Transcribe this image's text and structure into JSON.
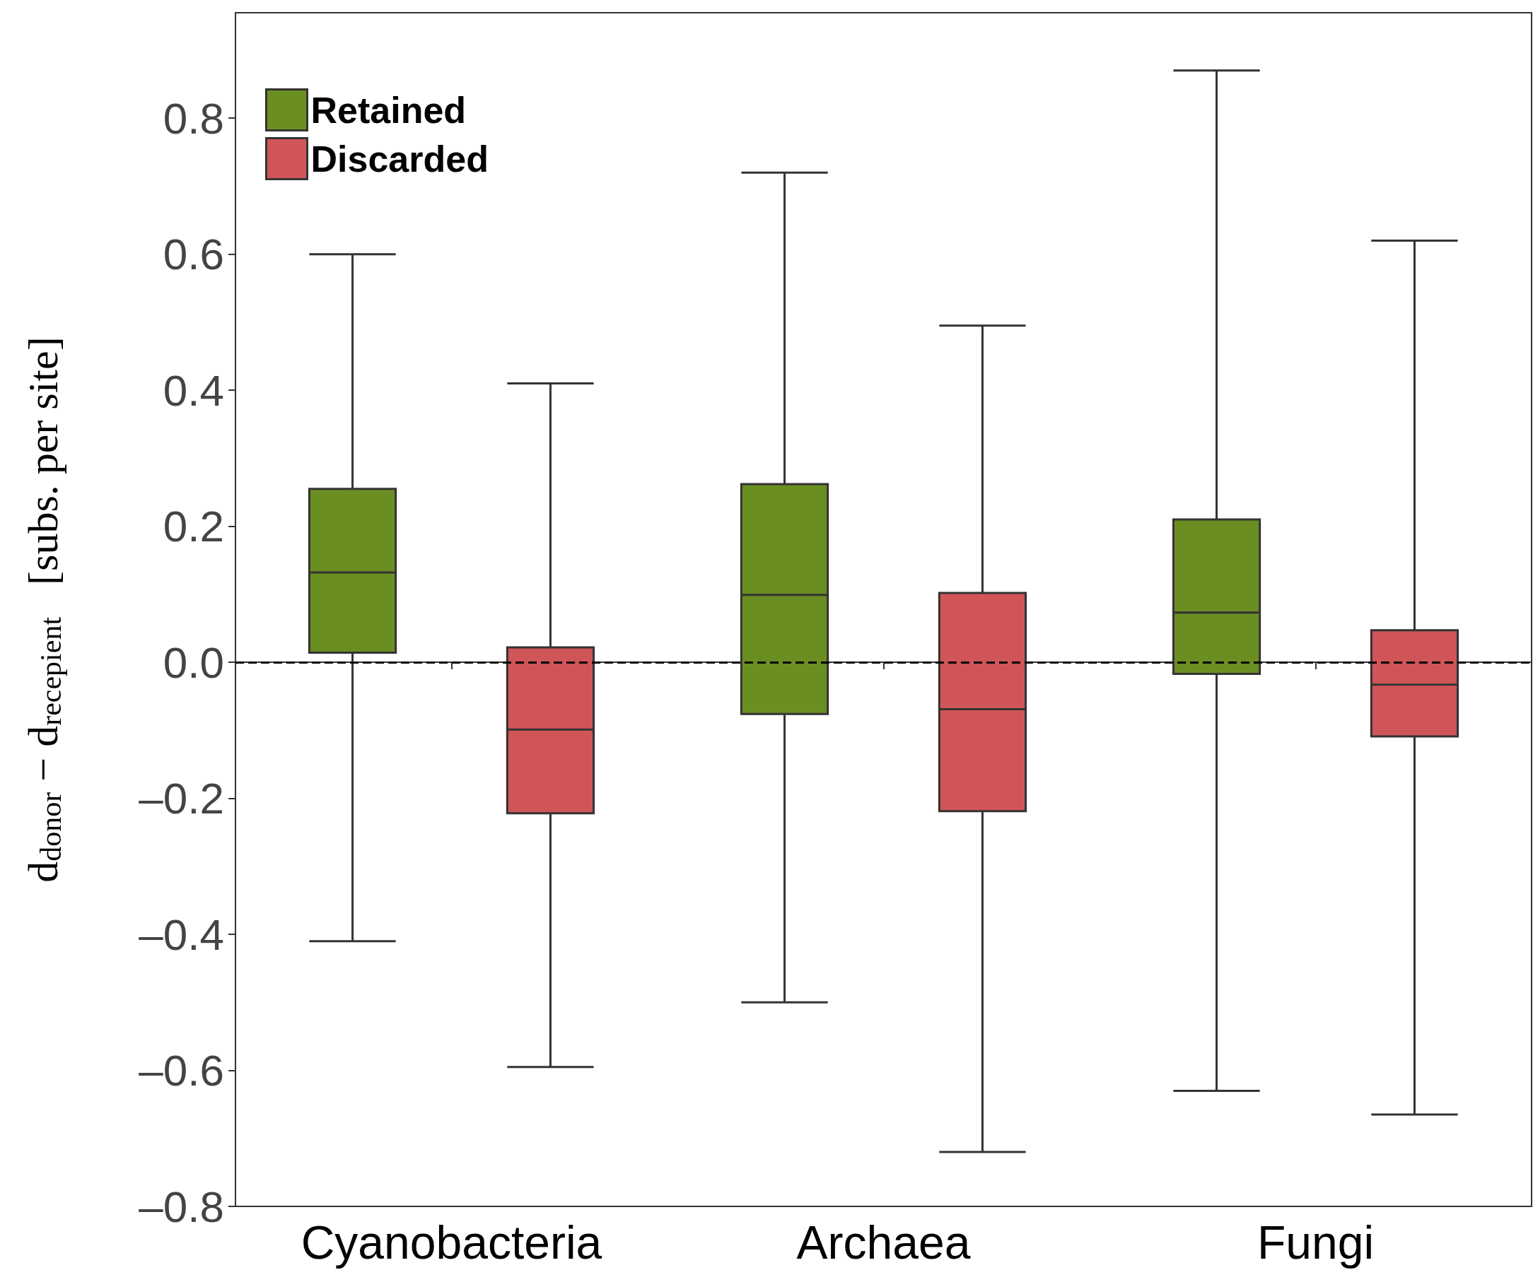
{
  "chart_data": {
    "type": "box",
    "ylabel": "d$_{donor}$ − d$_{recepient}$   [subs. per site]",
    "categories": [
      "Cyanobacteria",
      "Archaea",
      "Fungi"
    ],
    "series": [
      {
        "name": "Retained",
        "color": "#6b8e23",
        "boxes": [
          {
            "low": -0.41,
            "q1": 0.014,
            "median": 0.132,
            "q3": 0.255,
            "high": 0.6
          },
          {
            "low": -0.5,
            "q1": -0.076,
            "median": 0.099,
            "q3": 0.262,
            "high": 0.72
          },
          {
            "low": -0.63,
            "q1": -0.017,
            "median": 0.073,
            "q3": 0.21,
            "high": 0.87
          }
        ]
      },
      {
        "name": "Discarded",
        "color": "#d05558",
        "boxes": [
          {
            "low": -0.595,
            "q1": -0.222,
            "median": -0.099,
            "q3": 0.022,
            "high": 0.41
          },
          {
            "low": -0.72,
            "q1": -0.219,
            "median": -0.069,
            "q3": 0.102,
            "high": 0.495
          },
          {
            "low": -0.665,
            "q1": -0.109,
            "median": -0.033,
            "q3": 0.047,
            "high": 0.62
          }
        ]
      }
    ],
    "ylim": [
      -0.8,
      0.955
    ],
    "yticks": [
      {
        "value": -0.8,
        "label": "–0.8"
      },
      {
        "value": -0.6,
        "label": "–0.6"
      },
      {
        "value": -0.4,
        "label": "–0.4"
      },
      {
        "value": -0.2,
        "label": "–0.2"
      },
      {
        "value": 0,
        "label": "0.0"
      },
      0.2,
      0.4,
      0.6,
      0.8
    ],
    "ref_lines": [
      {
        "axis": "y",
        "value": 0,
        "line_style": "dashed",
        "color": "#000000"
      }
    ],
    "grid": false,
    "legend": "top left"
  }
}
